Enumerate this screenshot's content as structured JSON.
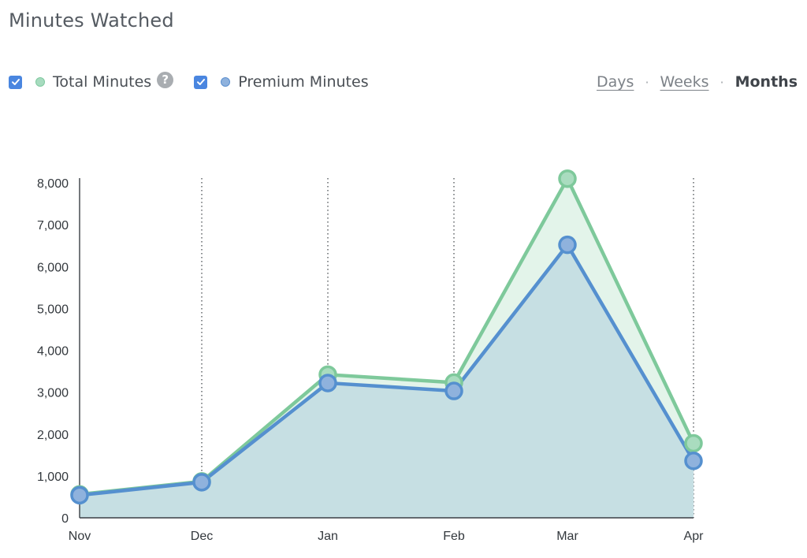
{
  "title": "Minutes Watched",
  "legend": {
    "total_label": "Total Minutes",
    "total_checked": true,
    "help_glyph": "?",
    "premium_label": "Premium Minutes",
    "premium_checked": true
  },
  "range": {
    "days": "Days",
    "weeks": "Weeks",
    "months": "Months",
    "separator": "·",
    "active": "Months"
  },
  "colors": {
    "total_line": "#7ec99b",
    "total_fill": "#e3f4ea",
    "total_marker": "#a9dcbf",
    "premium_line": "#5590cf",
    "premium_fill": "#c6dfe3",
    "premium_marker": "#8fb2dd",
    "checkbox": "#4a86e0"
  },
  "icons": {
    "checkbox": "checkmark-icon",
    "help": "question-circle-icon"
  },
  "chart_data": {
    "type": "area",
    "categories": [
      "Nov",
      "Dec",
      "Jan",
      "Feb",
      "Mar",
      "Apr"
    ],
    "series": [
      {
        "name": "Total Minutes",
        "values": [
          560,
          870,
          3420,
          3230,
          8100,
          1780
        ]
      },
      {
        "name": "Premium Minutes",
        "values": [
          540,
          850,
          3220,
          3030,
          6520,
          1360
        ]
      }
    ],
    "yticks": [
      "0",
      "1,000",
      "2,000",
      "3,000",
      "4,000",
      "5,000",
      "6,000",
      "7,000",
      "8,000"
    ],
    "ylim": [
      0,
      8000
    ],
    "grid": "vertical dotted",
    "legend": "top-left"
  }
}
